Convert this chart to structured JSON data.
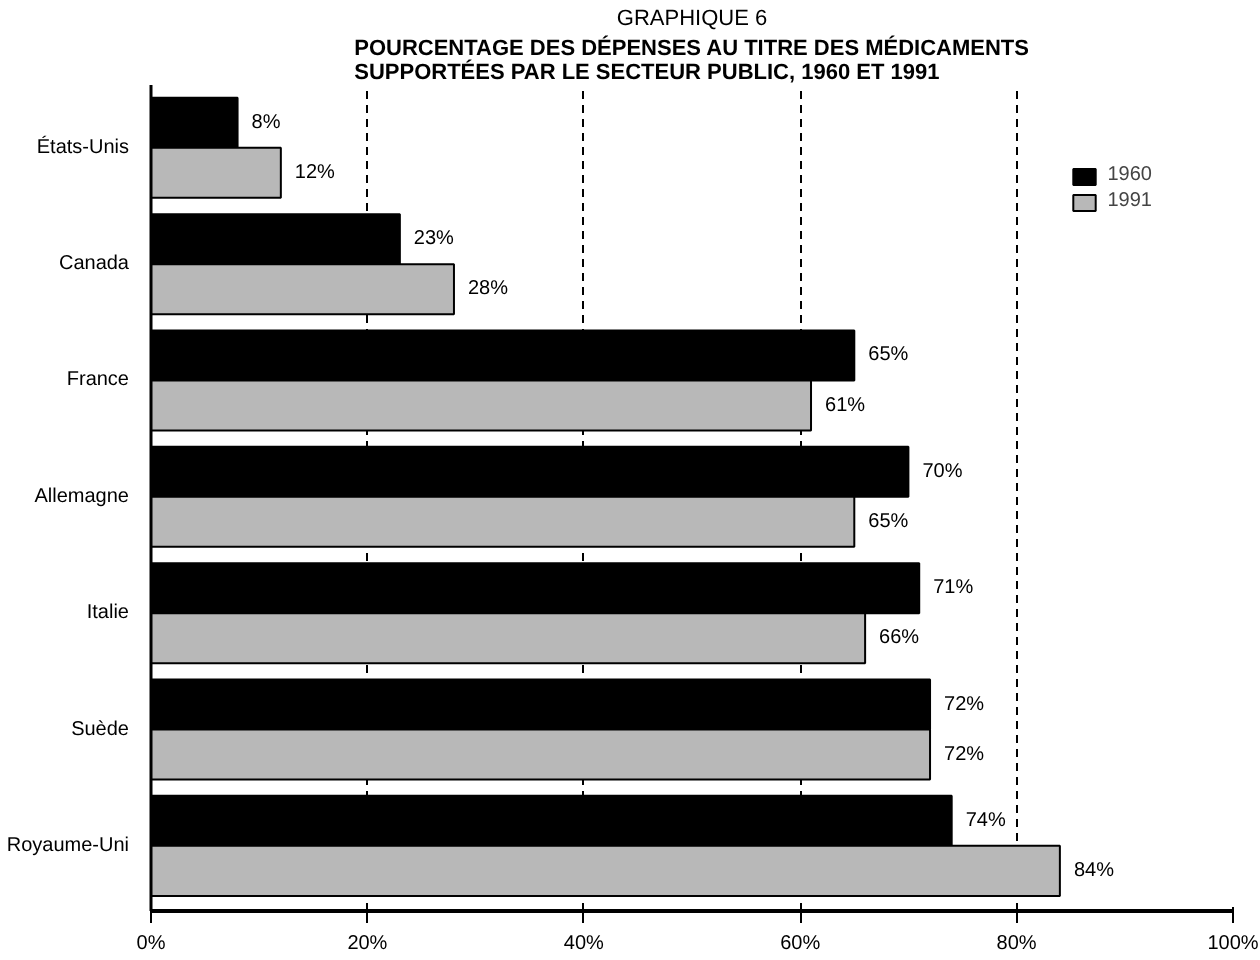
{
  "chart_data": {
    "type": "bar",
    "orientation": "horizontal",
    "title": "GRAPHIQUE 6",
    "subtitle": "POURCENTAGE DES DÉPENSES AU TITRE DES MÉDICAMENTS\nSUPPORTÉES PAR LE SECTEUR PUBLIC, 1960 ET 1991",
    "categories": [
      "États-Unis",
      "Canada",
      "France",
      "Allemagne",
      "Italie",
      "Suède",
      "Royaume-Uni"
    ],
    "series": [
      {
        "name": "1960",
        "color": "#000000",
        "values": [
          8,
          23,
          65,
          70,
          71,
          72,
          74
        ],
        "value_labels": [
          "8%",
          "23%",
          "65%",
          "70%",
          "71%",
          "72%",
          "74%"
        ]
      },
      {
        "name": "1991",
        "color": "#b8b8b8",
        "values": [
          12,
          28,
          61,
          65,
          66,
          72,
          84
        ],
        "value_labels": [
          "12%",
          "28%",
          "61%",
          "65%",
          "66%",
          "72%",
          "84%"
        ]
      }
    ],
    "xlim": [
      0,
      100
    ],
    "xticks": [
      {
        "value": 0,
        "label": "0%"
      },
      {
        "value": 20,
        "label": "20%"
      },
      {
        "value": 40,
        "label": "40%"
      },
      {
        "value": 60,
        "label": "60%"
      },
      {
        "value": 80,
        "label": "80%"
      },
      {
        "value": 100,
        "label": "100%"
      }
    ],
    "grid": "x",
    "legend": "top right"
  }
}
